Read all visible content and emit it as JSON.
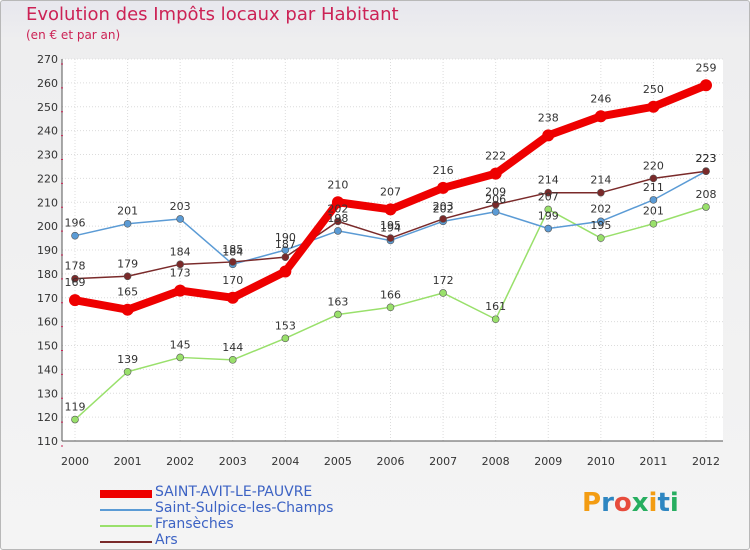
{
  "title": "Evolution des Impôts locaux par Habitant",
  "subtitle": "(en € et par an)",
  "logo": {
    "text": "Proxiti",
    "letters": [
      "P",
      "r",
      "o",
      "x",
      "i",
      "t",
      "i"
    ],
    "colors": [
      "#f39c12",
      "#2e86c1",
      "#e74c3c",
      "#27ae60",
      "#f39c12",
      "#2e86c1",
      "#27ae60"
    ]
  },
  "chart_data": {
    "type": "line",
    "title": "Evolution des Impôts locaux par Habitant",
    "subtitle": "(en € et par an)",
    "xlabel": "",
    "ylabel": "",
    "x": [
      "2000",
      "2001",
      "2002",
      "2003",
      "2004",
      "2005",
      "2006",
      "2007",
      "2008",
      "2009",
      "2010",
      "2011",
      "2012"
    ],
    "ylim": [
      110,
      270
    ],
    "yticks": [
      110,
      120,
      130,
      140,
      150,
      160,
      170,
      180,
      190,
      200,
      210,
      220,
      230,
      240,
      250,
      260,
      270
    ],
    "grid": true,
    "legend_position": "bottom-left",
    "series": [
      {
        "name": "SAINT-AVIT-LE-PAUVRE",
        "color": "#ee0000",
        "emphasis": true,
        "values": [
          169,
          165,
          173,
          170,
          181,
          210,
          207,
          216,
          222,
          238,
          246,
          250,
          259
        ],
        "labels": [
          "169",
          "165",
          "173",
          "170",
          "",
          "210",
          "207",
          "216",
          "222",
          "238",
          "246",
          "250",
          "259"
        ]
      },
      {
        "name": "Saint-Sulpice-les-Champs",
        "color": "#5b9bd5",
        "values": [
          196,
          201,
          203,
          184,
          190,
          198,
          194,
          202,
          206,
          199,
          202,
          211,
          223
        ],
        "labels": [
          "196",
          "201",
          "203",
          "184",
          "190",
          "198",
          "194",
          "202",
          "206",
          "199",
          "202",
          "211",
          "223"
        ]
      },
      {
        "name": "Fransèches",
        "color": "#99e06b",
        "values": [
          119,
          139,
          145,
          144,
          153,
          163,
          166,
          172,
          161,
          207,
          195,
          201,
          208
        ],
        "labels": [
          "119",
          "139",
          "145",
          "144",
          "153",
          "163",
          "166",
          "172",
          "161",
          "207",
          "195",
          "201",
          "208"
        ]
      },
      {
        "name": "Ars",
        "color": "#7a2a2a",
        "values": [
          178,
          179,
          184,
          185,
          187,
          202,
          195,
          203,
          209,
          214,
          214,
          220,
          223
        ],
        "labels": [
          "178",
          "179",
          "184",
          "185",
          "187",
          "202",
          "195",
          "203",
          "209",
          "214",
          "214",
          "220",
          "223"
        ]
      }
    ]
  }
}
